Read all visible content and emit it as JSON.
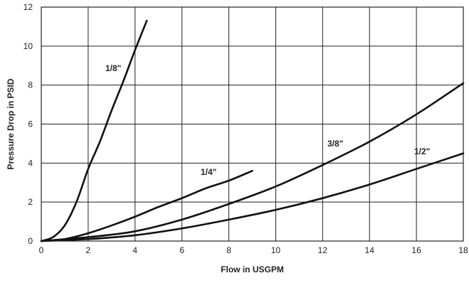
{
  "chart_data": {
    "type": "line",
    "xlabel": "Flow in USGPM",
    "ylabel": "Pressure Drop in PSID",
    "xlim": [
      0,
      18
    ],
    "ylim": [
      0,
      12
    ],
    "x_ticks": [
      "0",
      "2",
      "4",
      "6",
      "8",
      "10",
      "12",
      "14",
      "16",
      "18"
    ],
    "y_ticks": [
      "0",
      "2",
      "4",
      "6",
      "8",
      "10",
      "12"
    ],
    "grid": true,
    "series": [
      {
        "name": "1/8\"",
        "points": [
          [
            0,
            0
          ],
          [
            0.5,
            0.2
          ],
          [
            1,
            0.8
          ],
          [
            1.5,
            2.0
          ],
          [
            2,
            3.7
          ],
          [
            2.5,
            5.1
          ],
          [
            3,
            6.7
          ],
          [
            3.5,
            8.2
          ],
          [
            4,
            9.8
          ],
          [
            4.5,
            11.3
          ]
        ]
      },
      {
        "name": "1/4\"",
        "points": [
          [
            0,
            0
          ],
          [
            1,
            0.1
          ],
          [
            2,
            0.4
          ],
          [
            3,
            0.8
          ],
          [
            4,
            1.25
          ],
          [
            5,
            1.75
          ],
          [
            6,
            2.2
          ],
          [
            7,
            2.7
          ],
          [
            8,
            3.1
          ],
          [
            9,
            3.6
          ]
        ]
      },
      {
        "name": "3/8\"",
        "points": [
          [
            0,
            0
          ],
          [
            2,
            0.2
          ],
          [
            4,
            0.5
          ],
          [
            6,
            1.1
          ],
          [
            8,
            1.9
          ],
          [
            10,
            2.8
          ],
          [
            12,
            3.9
          ],
          [
            14,
            5.1
          ],
          [
            16,
            6.5
          ],
          [
            18,
            8.1
          ]
        ]
      },
      {
        "name": "1/2\"",
        "points": [
          [
            0,
            0
          ],
          [
            2,
            0.1
          ],
          [
            4,
            0.3
          ],
          [
            6,
            0.65
          ],
          [
            8,
            1.1
          ],
          [
            10,
            1.6
          ],
          [
            12,
            2.2
          ],
          [
            14,
            2.9
          ],
          [
            16,
            3.7
          ],
          [
            18,
            4.5
          ]
        ]
      }
    ]
  }
}
